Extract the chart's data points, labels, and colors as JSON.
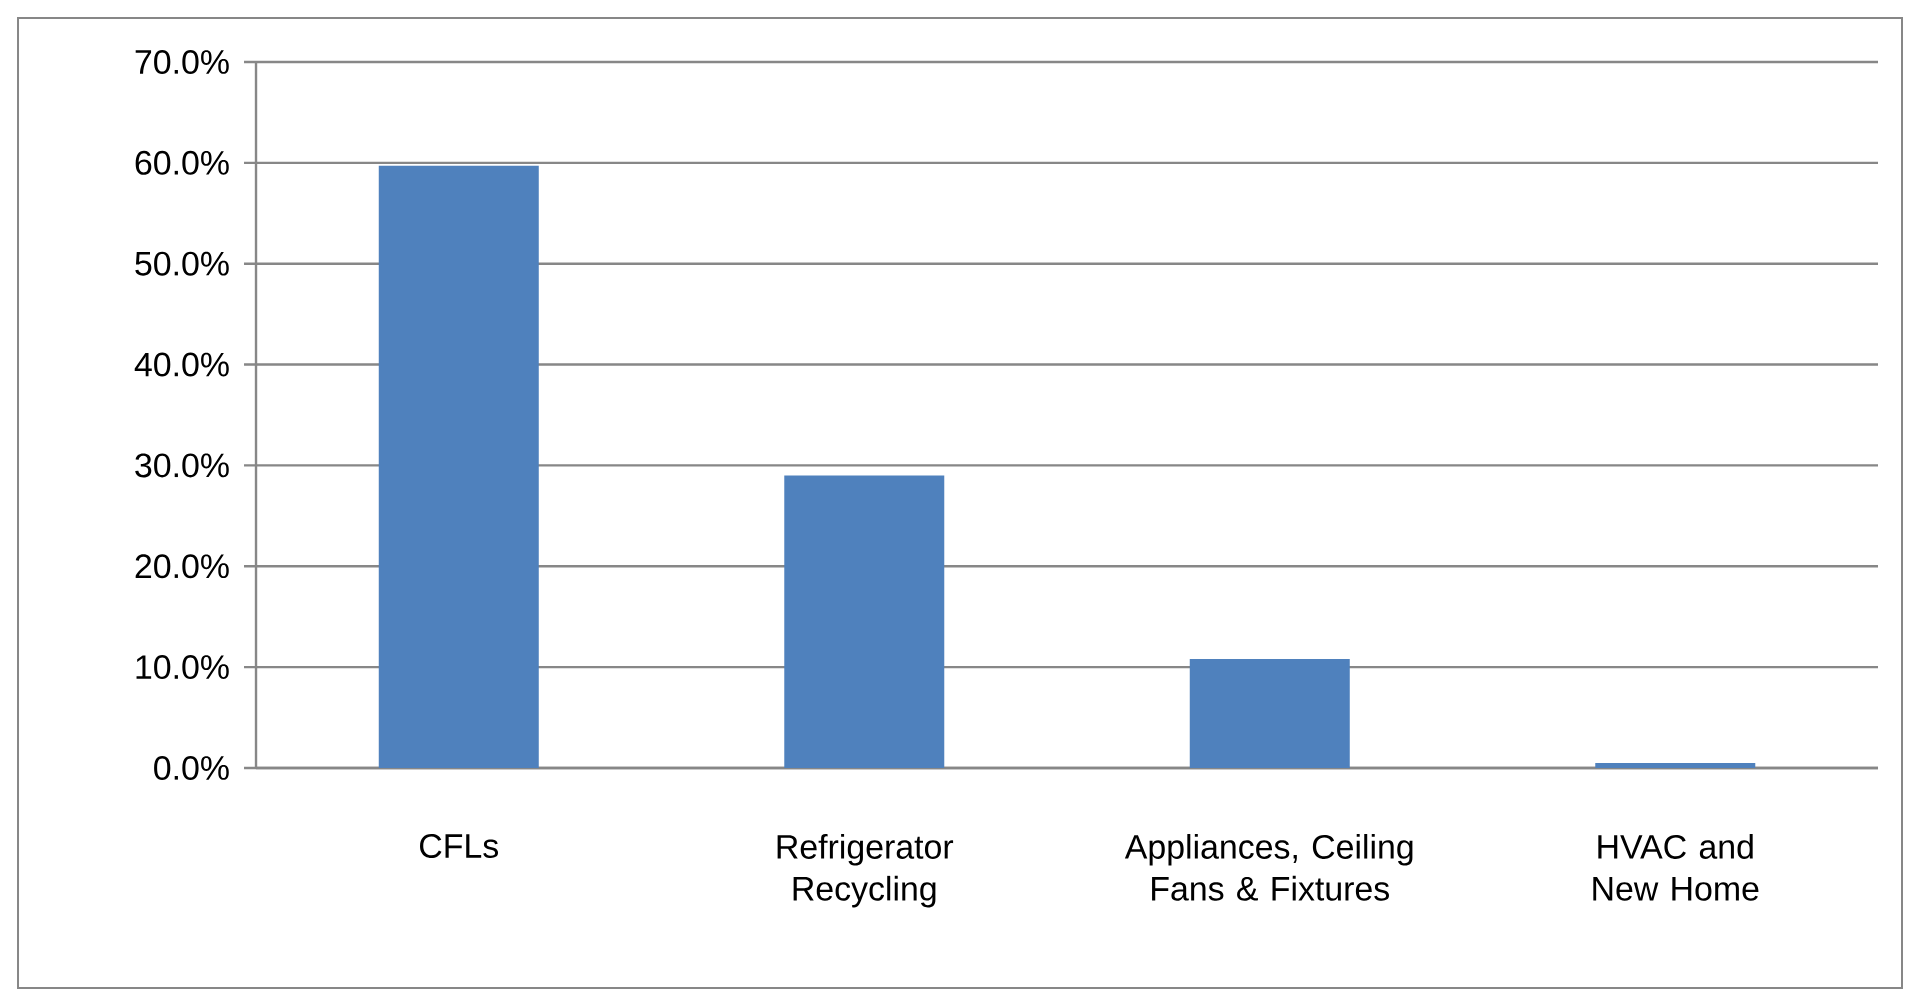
{
  "chart_data": {
    "type": "bar",
    "categories": [
      "CFLs",
      "Refrigerator Recycling",
      "Appliances, Ceiling Fans & Fixtures",
      "HVAC and New Home"
    ],
    "values": [
      59.7,
      29.0,
      10.8,
      0.5
    ],
    "color": "#4f81bd",
    "ylim": [
      0,
      70
    ],
    "yticks": [
      {
        "value": 0,
        "label": "0.0%"
      },
      {
        "value": 10,
        "label": "10.0%"
      },
      {
        "value": 20,
        "label": "20.0%"
      },
      {
        "value": 30,
        "label": "30.0%"
      },
      {
        "value": 40,
        "label": "40.0%"
      },
      {
        "value": 50,
        "label": "50.0%"
      },
      {
        "value": 60,
        "label": "60.0%"
      },
      {
        "value": 70,
        "label": "70.0%"
      }
    ],
    "grid": "y"
  }
}
